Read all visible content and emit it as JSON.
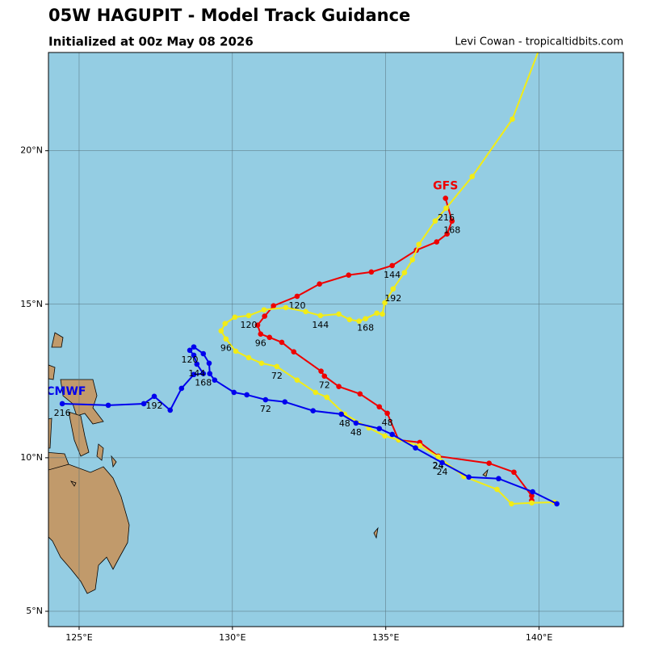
{
  "chart_data": {
    "type": "map",
    "title": "05W HAGUPIT - Model Track Guidance",
    "subtitle": "Initialized at 00z May 08 2026",
    "credit": "Levi Cowan - tropicaltidbits.com",
    "xlim": [
      124,
      142.75
    ],
    "ylim": [
      4.5,
      23.2
    ],
    "xticks": [
      {
        "value": 125,
        "label": "125°E"
      },
      {
        "value": 130,
        "label": "130°E"
      },
      {
        "value": 135,
        "label": "135°E"
      },
      {
        "value": 140,
        "label": "140°E"
      }
    ],
    "yticks": [
      {
        "value": 5,
        "label": "5°N"
      },
      {
        "value": 10,
        "label": "10°N"
      },
      {
        "value": 15,
        "label": "15°N"
      },
      {
        "value": 20,
        "label": "20°N"
      }
    ],
    "grid": true,
    "series": [
      {
        "name": "GFS",
        "color": "#ee0000",
        "x": [
          139.76,
          139.76,
          139.18,
          138.37,
          136.71,
          136.11,
          135.42,
          135.05,
          134.79,
          134.16,
          133.47,
          133.0,
          132.89,
          132.0,
          131.61,
          131.21,
          130.92,
          130.82,
          131.05,
          131.34,
          132.11,
          132.84,
          133.79,
          134.53,
          135.21,
          136.0,
          136.66,
          137.0,
          137.16,
          136.95
        ],
        "values": [
          8.61,
          8.76,
          9.53,
          9.82,
          10.05,
          10.5,
          10.58,
          11.45,
          11.66,
          12.08,
          12.32,
          12.66,
          12.82,
          13.45,
          13.76,
          13.92,
          14.03,
          14.32,
          14.61,
          14.95,
          15.26,
          15.66,
          15.95,
          16.05,
          16.26,
          16.76,
          17.03,
          17.29,
          17.71,
          18.45
        ],
        "value_labels": [
          null,
          null,
          null,
          null,
          24,
          null,
          null,
          48,
          null,
          null,
          null,
          72,
          null,
          null,
          null,
          null,
          96,
          null,
          null,
          null,
          120,
          null,
          null,
          null,
          144,
          null,
          null,
          null,
          168,
          null
        ]
      },
      {
        "color": "#f2ec16",
        "x": [
          140.5,
          139.76,
          139.1,
          138.63,
          137.55,
          136.71,
          136.11,
          135.42,
          134.97,
          134.45,
          133.66,
          133.08,
          132.71,
          132.11,
          131.45,
          130.95,
          130.53,
          130.11,
          129.79,
          129.63,
          129.76,
          130.08,
          130.53,
          131.03,
          131.74,
          132.39,
          132.87,
          133.47,
          133.82,
          134.13,
          134.34,
          134.71,
          134.89,
          134.97,
          135.24,
          135.61,
          135.87,
          136.08,
          136.61,
          136.97,
          137.82,
          139.13,
          140.0
        ],
        "values": [
          8.55,
          8.53,
          8.5,
          8.97,
          9.39,
          10.03,
          10.39,
          10.58,
          10.71,
          10.97,
          11.42,
          11.97,
          12.13,
          12.53,
          12.97,
          13.08,
          13.26,
          13.47,
          13.87,
          14.13,
          14.37,
          14.58,
          14.63,
          14.82,
          14.89,
          14.76,
          14.63,
          14.68,
          14.5,
          14.45,
          14.53,
          14.71,
          14.68,
          15.05,
          15.5,
          16.03,
          16.45,
          16.95,
          17.71,
          18.13,
          19.16,
          21.03,
          23.3
        ],
        "value_labels": [
          null,
          null,
          null,
          null,
          null,
          24,
          null,
          null,
          null,
          null,
          48,
          null,
          null,
          null,
          72,
          null,
          null,
          null,
          96,
          null,
          null,
          null,
          120,
          null,
          null,
          null,
          144,
          null,
          null,
          null,
          168,
          null,
          null,
          null,
          192,
          null,
          null,
          null,
          null,
          216,
          null,
          null,
          null
        ]
      },
      {
        "name": "ECMWF",
        "color": "#0000ee",
        "x": [
          140.58,
          139.79,
          138.68,
          137.71,
          136.84,
          135.97,
          135.21,
          134.79,
          134.03,
          133.55,
          132.63,
          131.71,
          131.08,
          130.47,
          130.05,
          129.42,
          129.26,
          129.24,
          129.05,
          128.74,
          128.61,
          128.74,
          128.84,
          129.05,
          128.74,
          128.34,
          127.97,
          127.45,
          127.11,
          125.95,
          124.45
        ],
        "values": [
          8.5,
          8.89,
          9.32,
          9.37,
          9.84,
          10.32,
          10.76,
          10.95,
          11.13,
          11.42,
          11.53,
          11.82,
          11.89,
          12.05,
          12.13,
          12.53,
          12.74,
          13.08,
          13.39,
          13.61,
          13.5,
          13.34,
          13.05,
          12.74,
          12.71,
          12.26,
          11.55,
          12.0,
          11.76,
          11.71,
          11.76
        ],
        "value_labels": [
          null,
          null,
          null,
          null,
          24,
          null,
          null,
          null,
          48,
          null,
          null,
          null,
          72,
          null,
          null,
          null,
          null,
          null,
          null,
          null,
          120,
          null,
          144,
          168,
          null,
          null,
          null,
          192,
          null,
          null,
          216
        ]
      }
    ]
  }
}
